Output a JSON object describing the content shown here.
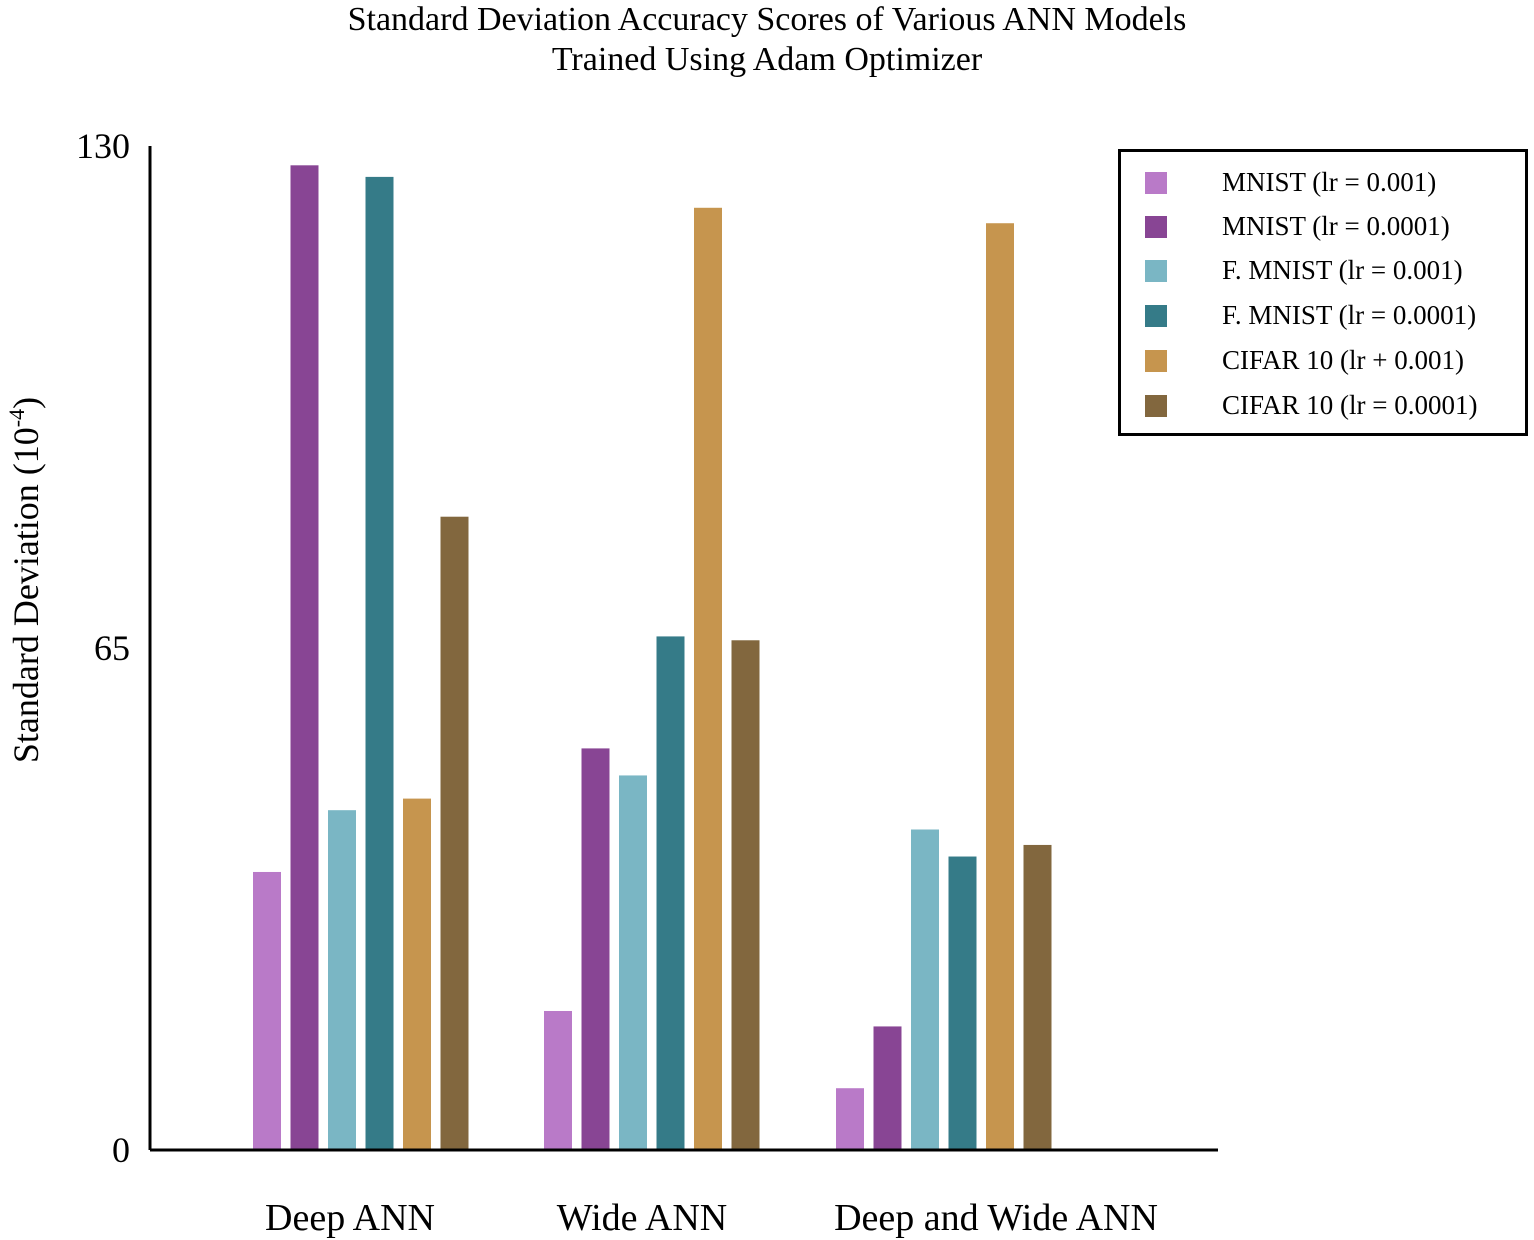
{
  "chart_data": {
    "type": "bar",
    "title_lines": [
      "Standard Deviation Accuracy Scores of Various ANN Models",
      "Trained Using Adam Optimizer"
    ],
    "xlabel": "",
    "ylabel": "Standard Deviation (10",
    "ylabel_exponent": "-4",
    "ylabel_close": ")",
    "ylim": [
      0,
      130
    ],
    "yticks": [
      "0",
      "65",
      "130"
    ],
    "ytick_values": [
      0,
      65,
      130
    ],
    "categories": [
      "Deep ANN",
      "Wide ANN",
      "Deep and Wide ANN"
    ],
    "series": [
      {
        "name": "MNIST (lr = 0.001)",
        "color": "#b97ac8",
        "values": [
          36,
          18,
          8
        ]
      },
      {
        "name": "MNIST (lr = 0.0001)",
        "color": "#884594",
        "values": [
          127.5,
          52,
          16
        ]
      },
      {
        "name": "F. MNIST (lr = 0.001)",
        "color": "#7ab6c4",
        "values": [
          44,
          48.5,
          41.5
        ]
      },
      {
        "name": "F. MNIST (lr = 0.0001)",
        "color": "#357b88",
        "values": [
          126,
          66.5,
          38
        ]
      },
      {
        "name": "CIFAR 10 (lr + 0.001)",
        "color": "#c6954e",
        "values": [
          45.5,
          122,
          120
        ]
      },
      {
        "name": "CIFAR 10 (lr = 0.0001)",
        "color": "#82673e",
        "values": [
          82,
          66,
          39.5
        ]
      }
    ],
    "legend_position": "top-right",
    "grid": false
  }
}
